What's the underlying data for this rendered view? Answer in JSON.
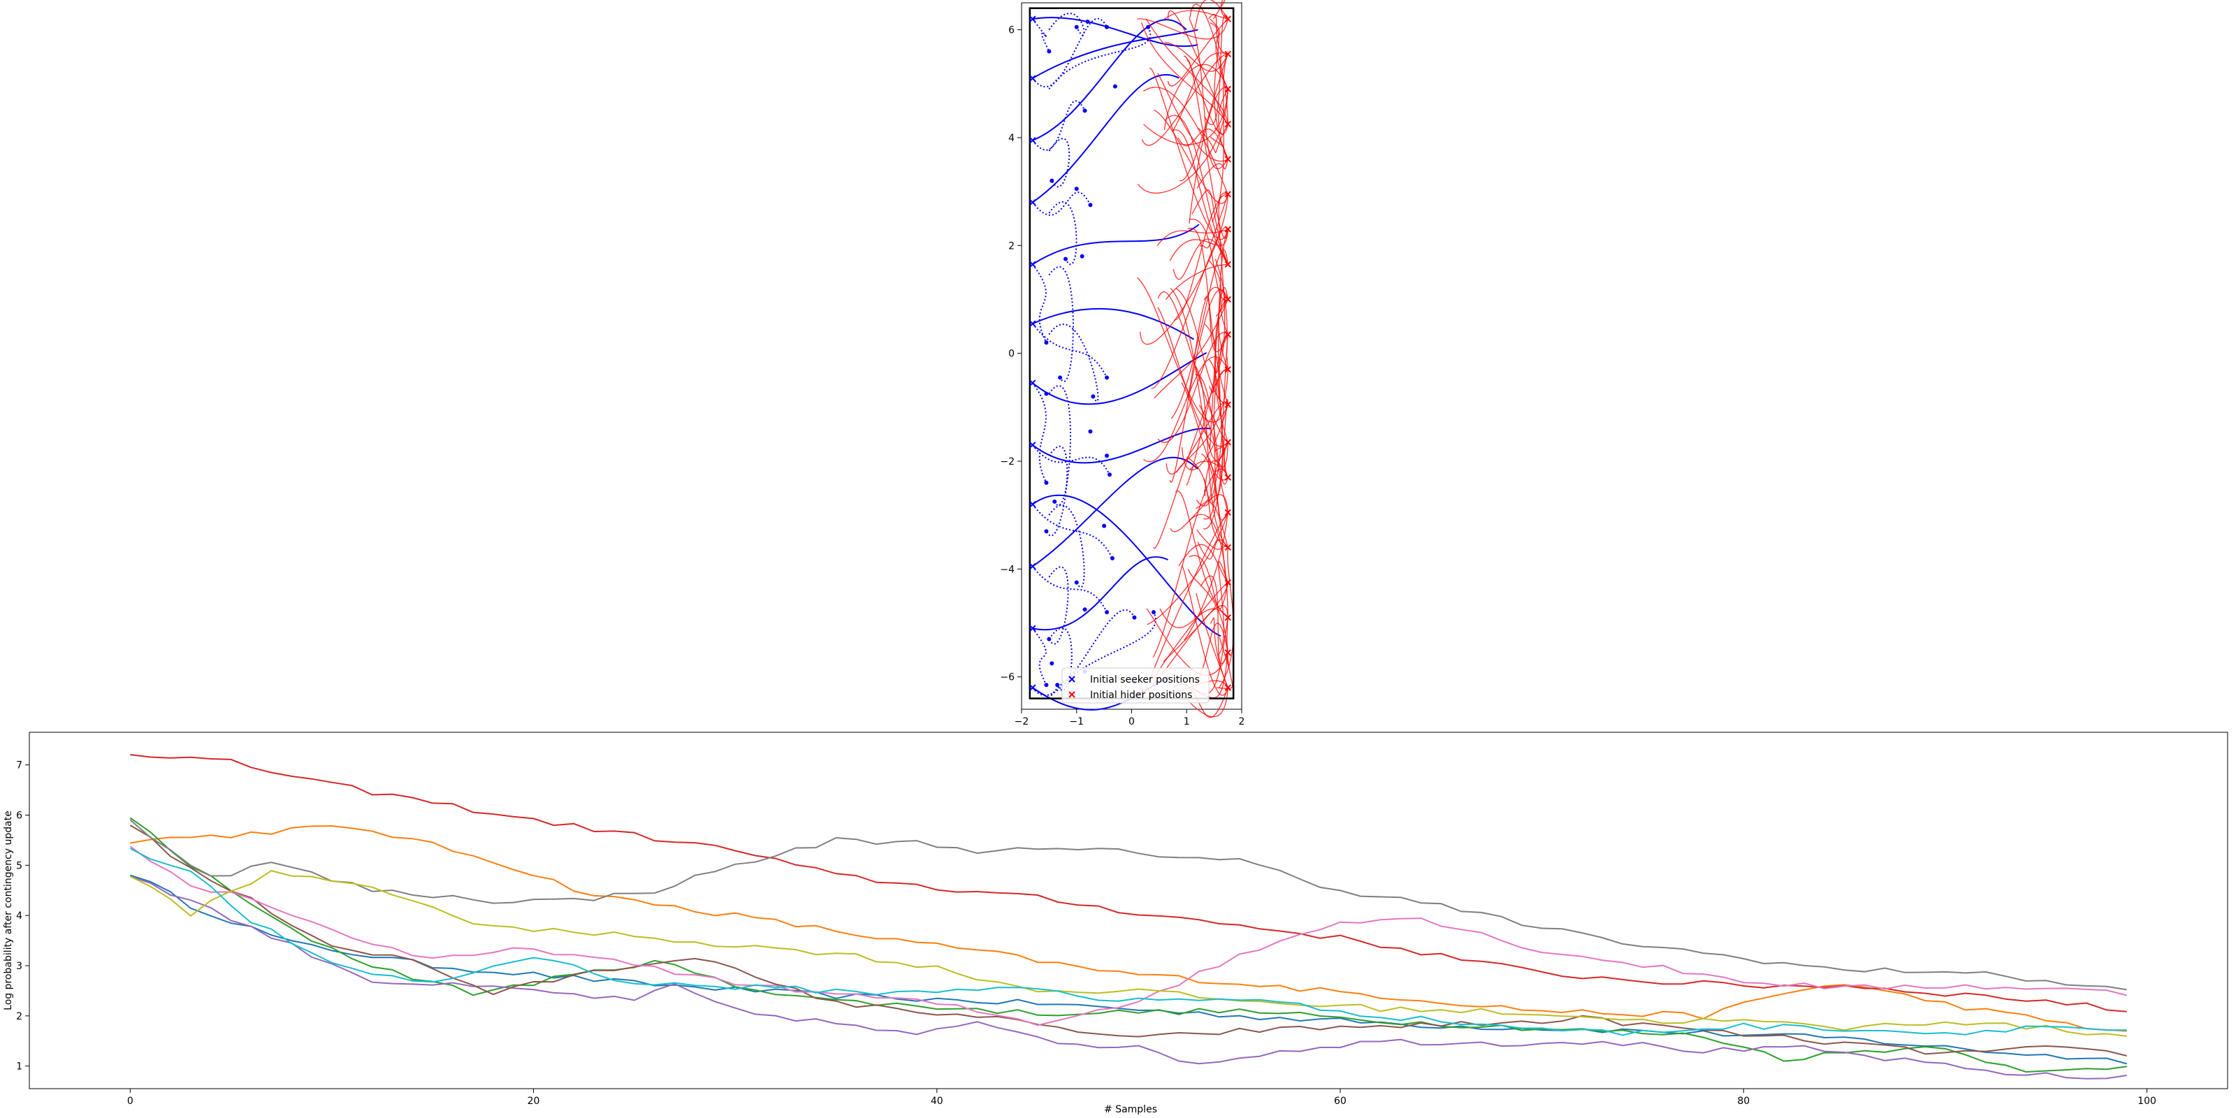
{
  "chart_data": [
    {
      "type": "scatter",
      "title": "",
      "xlabel": "",
      "ylabel": "",
      "xlim": [
        -2.0,
        2.0
      ],
      "ylim": [
        -6.6,
        6.5
      ],
      "xticks": [
        "−2",
        "−1",
        "0",
        "1",
        "2"
      ],
      "yticks": [
        "6",
        "4",
        "2",
        "0",
        "−2",
        "−4",
        "−6"
      ],
      "arena": {
        "x": [
          -1.85,
          1.85
        ],
        "y": [
          -6.4,
          6.4
        ]
      },
      "grid": false,
      "legend": {
        "placement": "bottom-center",
        "entries": [
          {
            "label": "Initial seeker positions",
            "color": "#0000ff",
            "marker": "x"
          },
          {
            "label": "Initial hider positions",
            "color": "#ff0000",
            "marker": "x"
          }
        ]
      },
      "seeker_initial_positions": [
        [
          -1.8,
          6.2
        ],
        [
          -1.8,
          5.1
        ],
        [
          -1.8,
          3.95
        ],
        [
          -1.8,
          2.8
        ],
        [
          -1.8,
          1.65
        ],
        [
          -1.8,
          0.55
        ],
        [
          -1.8,
          -0.55
        ],
        [
          -1.8,
          -1.7
        ],
        [
          -1.8,
          -2.8
        ],
        [
          -1.8,
          -3.95
        ],
        [
          -1.8,
          -5.1
        ],
        [
          -1.8,
          -6.2
        ]
      ],
      "seeker_final_positions": [
        [
          -1.5,
          5.6
        ],
        [
          -1.0,
          6.05
        ],
        [
          -0.8,
          6.15
        ],
        [
          -0.45,
          6.05
        ],
        [
          0.3,
          6.05
        ],
        [
          -0.3,
          4.95
        ],
        [
          -0.85,
          4.5
        ],
        [
          -1.45,
          3.2
        ],
        [
          -1.0,
          3.05
        ],
        [
          -0.75,
          2.75
        ],
        [
          -1.2,
          1.75
        ],
        [
          -0.9,
          1.8
        ],
        [
          -1.55,
          0.2
        ],
        [
          -1.3,
          -0.45
        ],
        [
          -1.55,
          -0.75
        ],
        [
          -0.45,
          -0.45
        ],
        [
          -0.7,
          -0.8
        ],
        [
          -0.75,
          -1.45
        ],
        [
          -1.55,
          -2.4
        ],
        [
          -1.4,
          -2.75
        ],
        [
          -0.45,
          -1.9
        ],
        [
          -0.4,
          -2.25
        ],
        [
          -1.55,
          -3.3
        ],
        [
          -0.5,
          -3.2
        ],
        [
          -0.35,
          -3.8
        ],
        [
          -1.0,
          -4.25
        ],
        [
          -0.85,
          -4.75
        ],
        [
          -0.45,
          -4.8
        ],
        [
          -1.5,
          -5.3
        ],
        [
          -1.45,
          -5.75
        ],
        [
          -1.55,
          -6.15
        ],
        [
          -1.35,
          -6.15
        ],
        [
          -0.85,
          -5.9
        ],
        [
          0.05,
          -4.9
        ],
        [
          0.4,
          -4.8
        ],
        [
          0.05,
          -6.1
        ]
      ],
      "hider_initial_positions": [
        [
          1.75,
          6.2
        ],
        [
          1.75,
          5.55
        ],
        [
          1.75,
          4.9
        ],
        [
          1.75,
          4.25
        ],
        [
          1.75,
          3.6
        ],
        [
          1.75,
          2.95
        ],
        [
          1.75,
          2.3
        ],
        [
          1.75,
          1.65
        ],
        [
          1.75,
          1.0
        ],
        [
          1.75,
          0.35
        ],
        [
          1.75,
          -0.3
        ],
        [
          1.75,
          -0.95
        ],
        [
          1.75,
          -1.65
        ],
        [
          1.75,
          -2.3
        ],
        [
          1.75,
          -2.95
        ],
        [
          1.75,
          -3.6
        ],
        [
          1.75,
          -4.25
        ],
        [
          1.75,
          -4.9
        ],
        [
          1.75,
          -5.55
        ],
        [
          1.75,
          -6.2
        ]
      ]
    },
    {
      "type": "line",
      "title": "",
      "xlabel": "# Samples",
      "ylabel": "Log probability after contingency update",
      "xlim": [
        -5,
        104
      ],
      "ylim": [
        0.55,
        7.65
      ],
      "xticks": [
        "0",
        "20",
        "40",
        "60",
        "80",
        "100"
      ],
      "yticks": [
        "1",
        "2",
        "3",
        "4",
        "5",
        "6",
        "7"
      ],
      "grid": false,
      "x_range": [
        0,
        99
      ],
      "series": [
        {
          "color": "#1f77b4",
          "points": [
            [
              0,
              4.85
            ],
            [
              3,
              4.2
            ],
            [
              8,
              3.45
            ],
            [
              15,
              3.0
            ],
            [
              25,
              2.65
            ],
            [
              35,
              2.4
            ],
            [
              45,
              2.25
            ],
            [
              55,
              2.0
            ],
            [
              65,
              1.8
            ],
            [
              75,
              1.7
            ],
            [
              85,
              1.55
            ],
            [
              92,
              1.3
            ],
            [
              99,
              1.1
            ]
          ]
        },
        {
          "color": "#ff7f0e",
          "points": [
            [
              0,
              5.5
            ],
            [
              5,
              5.6
            ],
            [
              9,
              5.75
            ],
            [
              12,
              5.7
            ],
            [
              18,
              5.1
            ],
            [
              23,
              4.4
            ],
            [
              30,
              4.0
            ],
            [
              38,
              3.5
            ],
            [
              42,
              3.3
            ],
            [
              48,
              2.9
            ],
            [
              55,
              2.65
            ],
            [
              62,
              2.4
            ],
            [
              70,
              2.1
            ],
            [
              78,
              2.0
            ],
            [
              82,
              2.45
            ],
            [
              85,
              2.65
            ],
            [
              88,
              2.4
            ],
            [
              92,
              2.1
            ],
            [
              96,
              1.85
            ],
            [
              99,
              1.65
            ]
          ]
        },
        {
          "color": "#2ca02c",
          "points": [
            [
              0,
              5.95
            ],
            [
              3,
              5.0
            ],
            [
              8,
              3.7
            ],
            [
              12,
              3.0
            ],
            [
              17,
              2.45
            ],
            [
              22,
              2.8
            ],
            [
              26,
              3.1
            ],
            [
              30,
              2.6
            ],
            [
              35,
              2.3
            ],
            [
              45,
              2.05
            ],
            [
              55,
              2.1
            ],
            [
              62,
              1.9
            ],
            [
              70,
              1.75
            ],
            [
              78,
              1.6
            ],
            [
              82,
              1.15
            ],
            [
              86,
              1.3
            ],
            [
              90,
              1.4
            ],
            [
              94,
              0.85
            ],
            [
              99,
              1.0
            ]
          ]
        },
        {
          "color": "#d62728",
          "points": [
            [
              0,
              7.25
            ],
            [
              5,
              7.05
            ],
            [
              10,
              6.6
            ],
            [
              20,
              5.9
            ],
            [
              30,
              5.3
            ],
            [
              35,
              4.8
            ],
            [
              40,
              4.55
            ],
            [
              45,
              4.35
            ],
            [
              50,
              4.05
            ],
            [
              55,
              3.8
            ],
            [
              60,
              3.55
            ],
            [
              65,
              3.2
            ],
            [
              70,
              2.85
            ],
            [
              75,
              2.7
            ],
            [
              80,
              2.6
            ],
            [
              85,
              2.6
            ],
            [
              90,
              2.45
            ],
            [
              95,
              2.3
            ],
            [
              99,
              2.1
            ]
          ]
        },
        {
          "color": "#9467bd",
          "points": [
            [
              0,
              4.8
            ],
            [
              3,
              4.3
            ],
            [
              8,
              3.4
            ],
            [
              12,
              2.7
            ],
            [
              20,
              2.5
            ],
            [
              25,
              2.3
            ],
            [
              27,
              2.6
            ],
            [
              30,
              2.1
            ],
            [
              35,
              1.85
            ],
            [
              39,
              1.6
            ],
            [
              42,
              1.9
            ],
            [
              46,
              1.5
            ],
            [
              50,
              1.35
            ],
            [
              53,
              1.05
            ],
            [
              57,
              1.3
            ],
            [
              62,
              1.5
            ],
            [
              68,
              1.45
            ],
            [
              73,
              1.5
            ],
            [
              78,
              1.3
            ],
            [
              83,
              1.35
            ],
            [
              88,
              1.1
            ],
            [
              92,
              0.9
            ],
            [
              97,
              0.75
            ],
            [
              99,
              0.8
            ]
          ]
        },
        {
          "color": "#8c564b",
          "points": [
            [
              0,
              5.85
            ],
            [
              3,
              4.9
            ],
            [
              6,
              4.3
            ],
            [
              10,
              3.4
            ],
            [
              14,
              3.1
            ],
            [
              18,
              2.45
            ],
            [
              22,
              2.8
            ],
            [
              28,
              3.2
            ],
            [
              32,
              2.6
            ],
            [
              36,
              2.2
            ],
            [
              42,
              2.0
            ],
            [
              46,
              1.75
            ],
            [
              50,
              1.55
            ],
            [
              55,
              1.7
            ],
            [
              62,
              1.8
            ],
            [
              68,
              1.85
            ],
            [
              72,
              1.95
            ],
            [
              78,
              1.7
            ],
            [
              85,
              1.45
            ],
            [
              90,
              1.25
            ],
            [
              95,
              1.35
            ],
            [
              99,
              1.25
            ]
          ]
        },
        {
          "color": "#e377c2",
          "points": [
            [
              0,
              5.35
            ],
            [
              3,
              4.6
            ],
            [
              6,
              4.35
            ],
            [
              10,
              3.7
            ],
            [
              15,
              3.1
            ],
            [
              20,
              3.35
            ],
            [
              25,
              3.0
            ],
            [
              32,
              2.55
            ],
            [
              40,
              2.25
            ],
            [
              45,
              1.85
            ],
            [
              50,
              2.3
            ],
            [
              55,
              3.2
            ],
            [
              60,
              3.9
            ],
            [
              64,
              3.95
            ],
            [
              70,
              3.3
            ],
            [
              76,
              2.95
            ],
            [
              80,
              2.7
            ],
            [
              85,
              2.55
            ],
            [
              90,
              2.6
            ],
            [
              95,
              2.55
            ],
            [
              99,
              2.45
            ]
          ]
        },
        {
          "color": "#7f7f7f",
          "points": [
            [
              0,
              5.9
            ],
            [
              4,
              4.75
            ],
            [
              7,
              5.05
            ],
            [
              12,
              4.5
            ],
            [
              18,
              4.3
            ],
            [
              22,
              4.3
            ],
            [
              26,
              4.5
            ],
            [
              30,
              5.0
            ],
            [
              35,
              5.5
            ],
            [
              39,
              5.45
            ],
            [
              42,
              5.3
            ],
            [
              48,
              5.3
            ],
            [
              55,
              5.1
            ],
            [
              60,
              4.5
            ],
            [
              65,
              4.2
            ],
            [
              70,
              3.75
            ],
            [
              75,
              3.4
            ],
            [
              80,
              3.15
            ],
            [
              85,
              2.9
            ],
            [
              90,
              2.9
            ],
            [
              95,
              2.7
            ],
            [
              99,
              2.5
            ]
          ]
        },
        {
          "color": "#bcbd22",
          "points": [
            [
              0,
              4.8
            ],
            [
              3,
              4.05
            ],
            [
              7,
              4.85
            ],
            [
              12,
              4.6
            ],
            [
              16,
              3.95
            ],
            [
              20,
              3.7
            ],
            [
              25,
              3.6
            ],
            [
              30,
              3.4
            ],
            [
              35,
              3.25
            ],
            [
              40,
              2.95
            ],
            [
              45,
              2.5
            ],
            [
              50,
              2.5
            ],
            [
              55,
              2.3
            ],
            [
              62,
              2.15
            ],
            [
              70,
              2.05
            ],
            [
              75,
              1.9
            ],
            [
              80,
              1.9
            ],
            [
              85,
              1.75
            ],
            [
              90,
              1.9
            ],
            [
              95,
              1.75
            ],
            [
              99,
              1.6
            ]
          ]
        },
        {
          "color": "#17becf",
          "points": [
            [
              0,
              5.35
            ],
            [
              3,
              4.85
            ],
            [
              6,
              3.9
            ],
            [
              10,
              3.0
            ],
            [
              15,
              2.65
            ],
            [
              20,
              3.2
            ],
            [
              25,
              2.65
            ],
            [
              32,
              2.55
            ],
            [
              38,
              2.45
            ],
            [
              44,
              2.6
            ],
            [
              48,
              2.3
            ],
            [
              55,
              2.35
            ],
            [
              62,
              2.0
            ],
            [
              68,
              1.8
            ],
            [
              74,
              1.65
            ],
            [
              80,
              1.8
            ],
            [
              85,
              1.75
            ],
            [
              90,
              1.65
            ],
            [
              95,
              1.8
            ],
            [
              99,
              1.7
            ]
          ]
        }
      ]
    }
  ]
}
